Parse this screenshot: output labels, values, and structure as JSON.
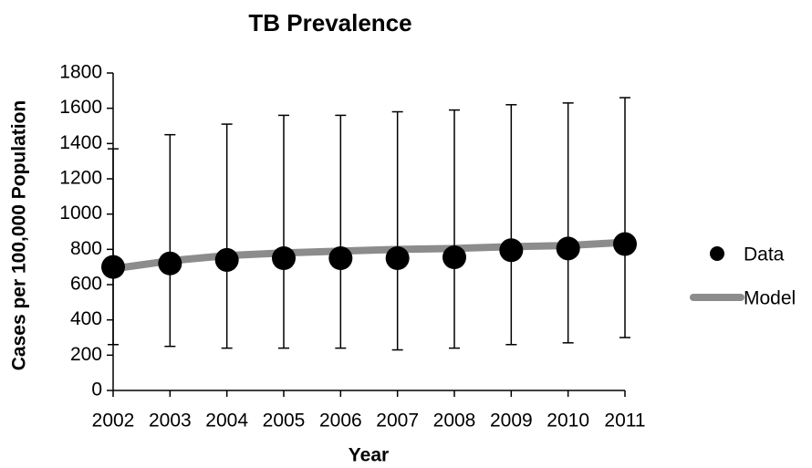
{
  "chart_data": {
    "type": "line",
    "title": "TB Prevalence",
    "x_label": "Year",
    "y_label": "Cases per 100,000 Population",
    "categories": [
      "2002",
      "2003",
      "2004",
      "2005",
      "2006",
      "2007",
      "2008",
      "2009",
      "2010",
      "2011"
    ],
    "series": [
      {
        "name": "Data",
        "color": "#000000",
        "marker": "circle",
        "values": [
          700,
          720,
          740,
          750,
          750,
          750,
          755,
          795,
          805,
          830
        ],
        "lower": [
          260,
          250,
          240,
          240,
          240,
          230,
          240,
          260,
          270,
          300
        ],
        "upper": [
          1370,
          1450,
          1510,
          1560,
          1560,
          1580,
          1590,
          1620,
          1630,
          1660
        ]
      },
      {
        "name": "Model",
        "color": "#8c8c8c",
        "marker": "none",
        "values": [
          690,
          735,
          765,
          780,
          790,
          800,
          805,
          815,
          822,
          840
        ]
      }
    ],
    "ylim": [
      0,
      1800
    ],
    "yticks": [
      0,
      200,
      400,
      600,
      800,
      1000,
      1200,
      1400,
      1600,
      1800
    ],
    "grid": false,
    "legend": "right"
  }
}
